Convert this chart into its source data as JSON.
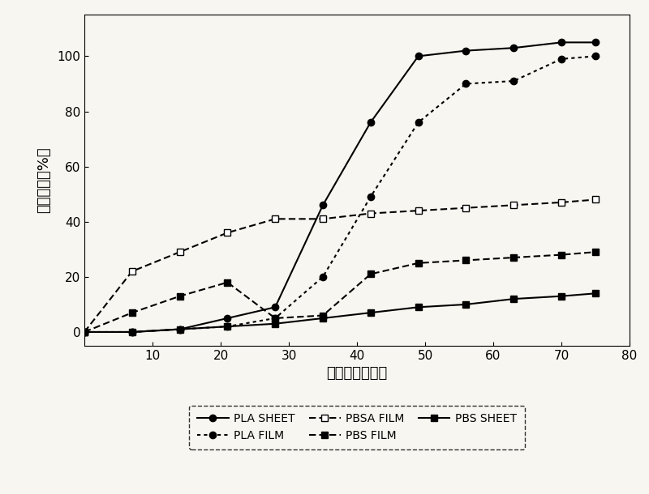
{
  "title": "",
  "xlabel": "经过日数（日）",
  "ylabel": "生分解率［%］",
  "xlim": [
    0,
    80
  ],
  "ylim": [
    -5,
    115
  ],
  "xticks": [
    10,
    20,
    30,
    40,
    50,
    60,
    70,
    80
  ],
  "yticks": [
    0,
    20,
    40,
    60,
    80,
    100
  ],
  "series": {
    "PLA_SHEET": {
      "x": [
        0,
        7,
        14,
        21,
        28,
        35,
        42,
        49,
        56,
        63,
        70,
        75
      ],
      "y": [
        0,
        0,
        1,
        5,
        9,
        46,
        76,
        100,
        102,
        103,
        105,
        105
      ],
      "color": "#000000",
      "linestyle": "solid",
      "marker": "o",
      "markerfacecolor": "#000000",
      "linewidth": 1.5,
      "markersize": 6,
      "label": "PLA SHEET"
    },
    "PLA_FILM": {
      "x": [
        0,
        7,
        14,
        21,
        28,
        35,
        42,
        49,
        56,
        63,
        70,
        75
      ],
      "y": [
        0,
        0,
        1,
        2,
        5,
        20,
        49,
        76,
        90,
        91,
        99,
        100
      ],
      "color": "#000000",
      "linestyle": "dotted",
      "marker": "o",
      "markerfacecolor": "#000000",
      "linewidth": 1.5,
      "markersize": 6,
      "label": "PLA FILM"
    },
    "PBSA_FILM": {
      "x": [
        0,
        7,
        14,
        21,
        28,
        35,
        42,
        49,
        56,
        63,
        70,
        75
      ],
      "y": [
        0,
        22,
        29,
        36,
        41,
        41,
        43,
        44,
        45,
        46,
        47,
        48
      ],
      "color": "#000000",
      "linestyle": "dashed",
      "marker": "s",
      "markerfacecolor": "#ffffff",
      "linewidth": 1.5,
      "markersize": 6,
      "label": "PBSA FILM"
    },
    "PBS_FILM": {
      "x": [
        0,
        7,
        14,
        21,
        28,
        35,
        42,
        49,
        56,
        63,
        70,
        75
      ],
      "y": [
        0,
        7,
        13,
        18,
        5,
        6,
        21,
        25,
        26,
        27,
        28,
        29
      ],
      "color": "#000000",
      "linestyle": "dashed",
      "marker": "s",
      "markerfacecolor": "#000000",
      "linewidth": 1.5,
      "markersize": 6,
      "label": "PBS FILM"
    },
    "PBS_SHEET": {
      "x": [
        0,
        7,
        14,
        21,
        28,
        35,
        42,
        49,
        56,
        63,
        70,
        75
      ],
      "y": [
        0,
        0,
        1,
        2,
        3,
        5,
        7,
        9,
        10,
        12,
        13,
        14
      ],
      "color": "#000000",
      "linestyle": "solid",
      "marker": "s",
      "markerfacecolor": "#000000",
      "linewidth": 1.5,
      "markersize": 6,
      "label": "PBS SHEET"
    }
  },
  "background_color": "#f8f6f0",
  "font_color": "#000000"
}
